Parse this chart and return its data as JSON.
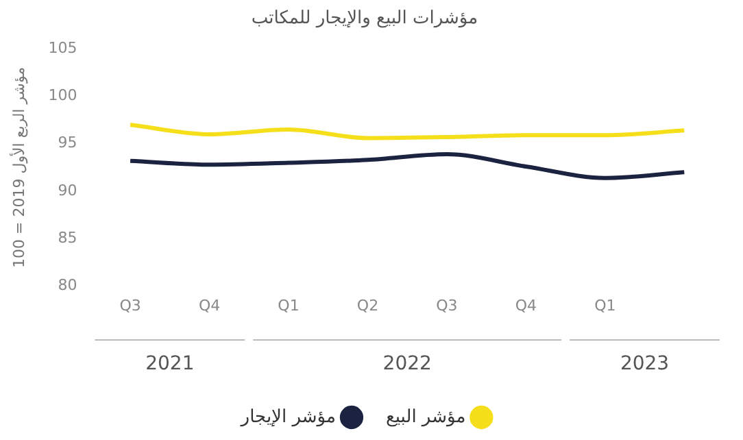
{
  "chart_data": {
    "type": "line",
    "title": "مؤشرات البيع والإيجار للمكاتب",
    "ylabel": "مؤشر الربع الأول 2019 = 100",
    "categories": [
      "Q3",
      "Q4",
      "Q1",
      "Q2",
      "Q3",
      "Q4",
      "Q1",
      null
    ],
    "annotations": [
      "2021",
      "2022",
      "2023"
    ],
    "series": [
      {
        "name": "مؤشر البيع",
        "color": "#f5df1b",
        "values": [
          97.0,
          96.0,
          96.5,
          95.6,
          95.7,
          95.9,
          95.9,
          96.4
        ]
      },
      {
        "name": "مؤشر الإيجار",
        "color": "#1c2341",
        "values": [
          93.2,
          92.8,
          93.0,
          93.3,
          93.9,
          92.6,
          91.4,
          92.0
        ]
      }
    ],
    "ylim": [
      80,
      105
    ],
    "yticks": [
      80,
      85,
      90,
      95,
      100,
      105
    ],
    "grid": false,
    "legend": "bottom",
    "marker": "none",
    "line_style": "solid"
  }
}
